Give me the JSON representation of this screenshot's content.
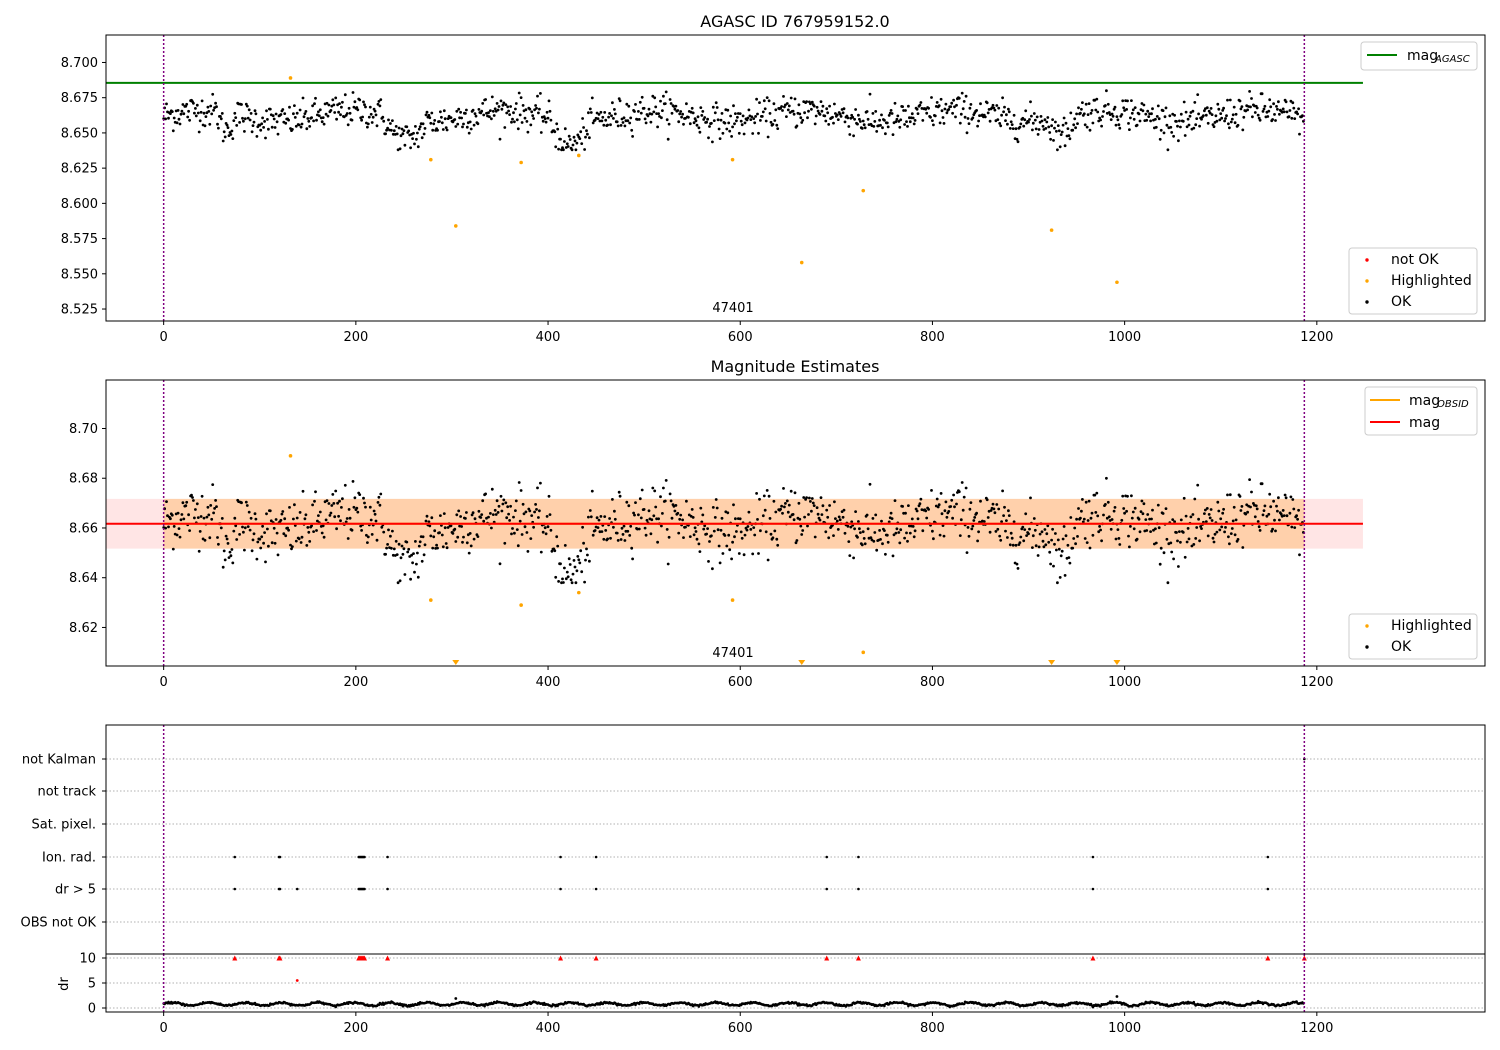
{
  "chart_data": [
    {
      "type": "scatter",
      "title": "AGASC ID 767959152.0",
      "xlim": [
        -60,
        1375
      ],
      "ylim": [
        8.5165,
        8.7195
      ],
      "x_ticks": [
        0,
        200,
        400,
        600,
        800,
        1000,
        1200
      ],
      "y_ticks": [
        8.525,
        8.55,
        8.575,
        8.6,
        8.625,
        8.65,
        8.675,
        8.7
      ],
      "y_tick_labels": [
        "8.525",
        "8.550",
        "8.575",
        "8.600",
        "8.625",
        "8.650",
        "8.675",
        "8.700"
      ],
      "obsid_label": "47401",
      "obsid_label_x": 593,
      "obs_boundaries": [
        0,
        1187
      ],
      "series": [
        {
          "name": "mag_AGASC",
          "kind": "hline",
          "y": 8.6855,
          "x_range": [
            -60,
            1248
          ],
          "color": "#008000"
        },
        {
          "name": "not OK",
          "kind": "points",
          "color": "#ff0000",
          "points": []
        },
        {
          "name": "Highlighted",
          "kind": "points",
          "color": "#ffa500",
          "points": [
            [
              132,
              8.689
            ],
            [
              278,
              8.631
            ],
            [
              304,
              8.584
            ],
            [
              372,
              8.629
            ],
            [
              432,
              8.634
            ],
            [
              592,
              8.631
            ],
            [
              664,
              8.558
            ],
            [
              728,
              8.609
            ],
            [
              924,
              8.581
            ],
            [
              992,
              8.544
            ]
          ]
        },
        {
          "name": "OK",
          "kind": "band_points",
          "color": "#000000",
          "description": "dense per-sample magnitudes",
          "x_range": [
            0,
            1187
          ],
          "count": 1187,
          "center": 8.662,
          "spread": 0.009,
          "dips": [
            [
              55,
              75,
              -0.012
            ],
            [
              225,
              275,
              -0.014
            ],
            [
              400,
              445,
              -0.017
            ],
            [
              920,
              950,
              -0.012
            ]
          ]
        }
      ],
      "legends": [
        {
          "position": "upper right",
          "entries": [
            "mag_AGASC"
          ]
        },
        {
          "position": "lower right",
          "entries": [
            "not OK",
            "Highlighted",
            "OK"
          ]
        }
      ],
      "legend_labels": {
        "mag": "mag",
        "sub_agasc": "AGASC",
        "sub_obsid": "OBSID",
        "not_ok": "not OK",
        "highlighted": "Highlighted",
        "ok": "OK"
      }
    },
    {
      "type": "scatter",
      "title": "Magnitude Estimates",
      "xlim": [
        -60,
        1375
      ],
      "ylim": [
        8.6045,
        8.7195
      ],
      "x_ticks": [
        0,
        200,
        400,
        600,
        800,
        1000,
        1200
      ],
      "y_ticks": [
        8.62,
        8.64,
        8.66,
        8.68,
        8.7
      ],
      "y_tick_labels": [
        "8.62",
        "8.64",
        "8.66",
        "8.68",
        "8.70"
      ],
      "obsid_label": "47401",
      "obsid_label_x": 593,
      "obs_boundaries": [
        0,
        1187
      ],
      "series": [
        {
          "name": "mag_OBSID",
          "kind": "hline",
          "y": 8.6617,
          "x_range": [
            0,
            1187
          ],
          "color": "#ffa500",
          "band": [
            8.6517,
            8.6717
          ]
        },
        {
          "name": "mag",
          "kind": "hline",
          "y": 8.6617,
          "x_range": [
            -60,
            1248
          ],
          "color": "#ff0000",
          "band": [
            8.6517,
            8.6717
          ]
        },
        {
          "name": "Highlighted",
          "kind": "points",
          "color": "#ffa500",
          "points": [
            [
              132,
              8.689
            ],
            [
              278,
              8.631
            ],
            [
              372,
              8.629
            ],
            [
              432,
              8.634
            ],
            [
              592,
              8.631
            ],
            [
              728,
              8.61
            ]
          ]
        },
        {
          "name": "Highlighted (below range)",
          "kind": "down_markers",
          "color": "#ffa500",
          "x": [
            304,
            664,
            924,
            992
          ]
        },
        {
          "name": "OK",
          "kind": "band_points",
          "color": "#000000",
          "description": "dense per-sample magnitudes",
          "x_range": [
            0,
            1187
          ],
          "count": 1187,
          "center": 8.662,
          "spread": 0.009,
          "dips": [
            [
              55,
              75,
              -0.012
            ],
            [
              225,
              275,
              -0.014
            ],
            [
              400,
              445,
              -0.017
            ],
            [
              920,
              950,
              -0.012
            ]
          ]
        }
      ],
      "legends": [
        {
          "position": "upper right",
          "entries": [
            "mag_OBSID",
            "mag"
          ]
        },
        {
          "position": "lower right",
          "entries": [
            "Highlighted",
            "OK"
          ]
        }
      ]
    },
    {
      "type": "scatter",
      "title": "",
      "xlim": [
        -60,
        1375
      ],
      "x_ticks": [
        0,
        200,
        400,
        600,
        800,
        1000,
        1200
      ],
      "categories": [
        "not Kalman",
        "not track",
        "Sat. pixel.",
        "Ion. rad.",
        "dr > 5",
        "OBS not OK"
      ],
      "obs_boundaries": [
        0,
        1187
      ],
      "flags": {
        "Ion. rad.": [
          74,
          120,
          121,
          203,
          204,
          205,
          206,
          207,
          208,
          209,
          233,
          413,
          450,
          690,
          723,
          967,
          1149
        ],
        "dr > 5": [
          74,
          120,
          121,
          139,
          203,
          204,
          205,
          206,
          207,
          208,
          209,
          233,
          413,
          450,
          690,
          723,
          967,
          1149
        ],
        "not Kalman": [
          1187
        ]
      }
    },
    {
      "type": "scatter",
      "title": "",
      "xlim": [
        -60,
        1375
      ],
      "ylim": [
        -0.8,
        10.8
      ],
      "ylabel": "dr",
      "y_ticks": [
        0,
        5,
        10
      ],
      "x_ticks": [
        0,
        200,
        400,
        600,
        800,
        1000,
        1200
      ],
      "obs_boundaries": [
        0,
        1187
      ],
      "series": [
        {
          "name": "dr",
          "kind": "wave_points",
          "color": "#000000",
          "x_range": [
            0,
            1187
          ],
          "count": 1187,
          "center": 0.8,
          "amplitude": 0.3
        },
        {
          "name": "dr outliers",
          "kind": "points",
          "color": "#ff0000",
          "points": [
            [
              139,
              5.5
            ],
            [
              304,
              1.9
            ],
            [
              992,
              2.3
            ]
          ]
        },
        {
          "name": "dr clipped",
          "kind": "up_markers",
          "color": "#ff0000",
          "x": [
            74,
            120,
            121,
            203,
            204,
            205,
            206,
            207,
            208,
            209,
            233,
            413,
            450,
            690,
            723,
            967,
            1149,
            1187
          ]
        }
      ]
    }
  ]
}
